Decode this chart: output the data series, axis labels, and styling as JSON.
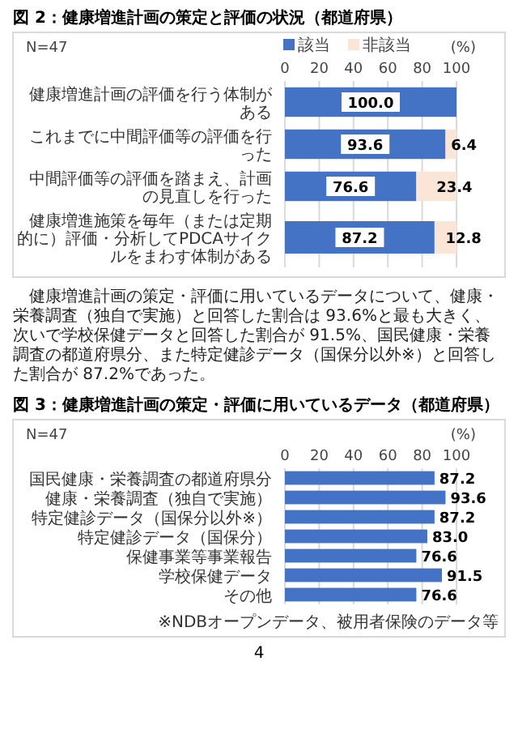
{
  "chart_data": [
    {
      "type": "bar",
      "orientation": "horizontal",
      "stacked": true,
      "title": "図 2：健康増進計画の策定と評価の状況（都道府県）",
      "xlabel": "(%)",
      "xlim": [
        0,
        100
      ],
      "xticks": [
        0,
        20,
        40,
        60,
        80,
        100
      ],
      "grid": "x",
      "legend": "top",
      "categories": [
        "健康増進計画の評価を行う体制がある",
        "これまでに中間評価等の評価を行った",
        "中間評価等の評価を踏まえ、計画の見直しを行った",
        "健康増進施策を毎年（または定期的に）評価・分析してPDCAサイクルをまわす体制がある"
      ],
      "series": [
        {
          "name": "該当",
          "color": "#4472c4",
          "values": [
            100,
            93.6,
            76.6,
            87.2
          ],
          "value_labels": [
            "100.0",
            "93.6",
            "76.6",
            "87.2"
          ]
        },
        {
          "name": "非該当",
          "color": "#fbe5d6",
          "values": [
            0,
            6.4,
            23.4,
            12.8
          ],
          "value_labels": [
            null,
            "6.4",
            "23.4",
            "12.8"
          ]
        }
      ],
      "annotations": [
        "N=47",
        "健康増進計画の策定・評価に用いているデータについて、健康・栄養調査（独自で実施）と回答した割合は 93.6%と最も大きく、次いで学校保健データと回答した割合が 91.5%、国民健康・栄養調査の都道府県分、また特定健診データ（国保分以外※）と回答した割合が 87.2%であった。"
      ]
    },
    {
      "type": "bar",
      "orientation": "horizontal",
      "title": "図 3：健康増進計画の策定・評価に用いているデータ（都道府県）",
      "xlabel": "(%)",
      "xlim": [
        0,
        100
      ],
      "xticks": [
        0,
        20,
        40,
        60,
        80,
        100
      ],
      "grid": "x",
      "categories": [
        "国民健康・栄養調査の都道府県分",
        "健康・栄養調査（独自で実施）",
        "特定健診データ（国保分以外※）",
        "特定健診データ（国保分）",
        "保健事業等事業報告",
        "学校保健データ",
        "その他"
      ],
      "color": "#4472c4",
      "values": [
        87.2,
        93.6,
        87.2,
        83.0,
        76.6,
        91.5,
        76.6
      ],
      "value_labels": [
        "87.2",
        "93.6",
        "87.2",
        "83.0",
        "76.6",
        "91.5",
        "76.6"
      ],
      "annotations": [
        "N=47",
        "※NDBオープンデータ、被用者保険のデータ等",
        "4"
      ]
    }
  ]
}
